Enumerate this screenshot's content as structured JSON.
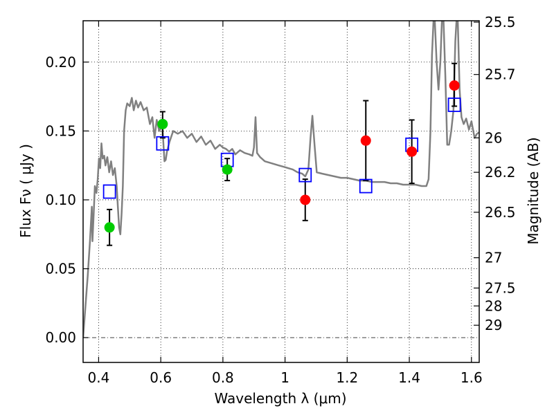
{
  "chart_data": {
    "type": "scatter",
    "xlabel": "Wavelength  λ (μm)",
    "ylabel": "Flux  Fν  ( μJy )",
    "ylabel_right": "Magnitude (AB)",
    "xlim": [
      0.35,
      1.625
    ],
    "ylim": [
      -0.018,
      0.23
    ],
    "x_ticks": [
      0.4,
      0.6,
      0.8,
      1.0,
      1.2,
      1.4,
      1.6
    ],
    "x_tick_labels": [
      "0.4",
      "0.6",
      "0.8",
      "1",
      "1.2",
      "1.4",
      "1.6"
    ],
    "y_ticks": [
      0.0,
      0.05,
      0.1,
      0.15,
      0.2
    ],
    "y_tick_labels": [
      "0.00",
      "0.05",
      "0.10",
      "0.15",
      "0.20"
    ],
    "right_ticks": [
      {
        "label": "25.5",
        "flux": 0.229
      },
      {
        "label": "25.7",
        "flux": 0.191
      },
      {
        "label": "26",
        "flux": 0.145
      },
      {
        "label": "26.2",
        "flux": 0.12
      },
      {
        "label": "26.5",
        "flux": 0.091
      },
      {
        "label": "27",
        "flux": 0.058
      },
      {
        "label": "27.5",
        "flux": 0.036
      },
      {
        "label": "28",
        "flux": 0.023
      },
      {
        "label": "29",
        "flux": 0.009
      }
    ],
    "grid": true,
    "zero_line": 0.0,
    "colors": {
      "template": "#808080",
      "green_points": "#00cc00",
      "red_points": "#ff0000",
      "model_squares": "#0000ff",
      "errorbars": "#000000"
    },
    "series": [
      {
        "kind": "line",
        "points": [
          [
            0.35,
            0.0
          ],
          [
            0.365,
            0.045
          ],
          [
            0.372,
            0.07
          ],
          [
            0.378,
            0.095
          ],
          [
            0.38,
            0.07
          ],
          [
            0.384,
            0.09
          ],
          [
            0.388,
            0.11
          ],
          [
            0.393,
            0.105
          ],
          [
            0.397,
            0.115
          ],
          [
            0.401,
            0.13
          ],
          [
            0.405,
            0.123
          ],
          [
            0.409,
            0.141
          ],
          [
            0.413,
            0.13
          ],
          [
            0.418,
            0.132
          ],
          [
            0.422,
            0.125
          ],
          [
            0.428,
            0.131
          ],
          [
            0.434,
            0.12
          ],
          [
            0.44,
            0.128
          ],
          [
            0.446,
            0.118
          ],
          [
            0.452,
            0.123
          ],
          [
            0.458,
            0.11
          ],
          [
            0.462,
            0.095
          ],
          [
            0.466,
            0.08
          ],
          [
            0.47,
            0.075
          ],
          [
            0.474,
            0.09
          ],
          [
            0.478,
            0.11
          ],
          [
            0.482,
            0.15
          ],
          [
            0.487,
            0.165
          ],
          [
            0.492,
            0.17
          ],
          [
            0.5,
            0.168
          ],
          [
            0.507,
            0.174
          ],
          [
            0.513,
            0.165
          ],
          [
            0.52,
            0.172
          ],
          [
            0.527,
            0.167
          ],
          [
            0.535,
            0.171
          ],
          [
            0.545,
            0.165
          ],
          [
            0.555,
            0.167
          ],
          [
            0.565,
            0.155
          ],
          [
            0.573,
            0.16
          ],
          [
            0.58,
            0.145
          ],
          [
            0.587,
            0.158
          ],
          [
            0.595,
            0.15
          ],
          [
            0.605,
            0.154
          ],
          [
            0.612,
            0.128
          ],
          [
            0.616,
            0.129
          ],
          [
            0.62,
            0.135
          ],
          [
            0.628,
            0.142
          ],
          [
            0.64,
            0.15
          ],
          [
            0.655,
            0.148
          ],
          [
            0.67,
            0.15
          ],
          [
            0.685,
            0.145
          ],
          [
            0.7,
            0.148
          ],
          [
            0.715,
            0.142
          ],
          [
            0.73,
            0.146
          ],
          [
            0.745,
            0.14
          ],
          [
            0.76,
            0.143
          ],
          [
            0.775,
            0.137
          ],
          [
            0.79,
            0.14
          ],
          [
            0.8,
            0.138
          ],
          [
            0.81,
            0.137
          ],
          [
            0.82,
            0.135
          ],
          [
            0.83,
            0.137
          ],
          [
            0.84,
            0.133
          ],
          [
            0.855,
            0.136
          ],
          [
            0.87,
            0.134
          ],
          [
            0.885,
            0.133
          ],
          [
            0.895,
            0.132
          ],
          [
            0.9,
            0.138
          ],
          [
            0.905,
            0.16
          ],
          [
            0.91,
            0.134
          ],
          [
            0.92,
            0.131
          ],
          [
            0.935,
            0.128
          ],
          [
            0.95,
            0.127
          ],
          [
            0.965,
            0.126
          ],
          [
            0.98,
            0.125
          ],
          [
            0.995,
            0.124
          ],
          [
            1.01,
            0.123
          ],
          [
            1.025,
            0.122
          ],
          [
            1.04,
            0.12
          ],
          [
            1.055,
            0.119
          ],
          [
            1.065,
            0.117
          ],
          [
            1.075,
            0.122
          ],
          [
            1.082,
            0.145
          ],
          [
            1.088,
            0.161
          ],
          [
            1.095,
            0.14
          ],
          [
            1.102,
            0.12
          ],
          [
            1.12,
            0.119
          ],
          [
            1.14,
            0.118
          ],
          [
            1.16,
            0.117
          ],
          [
            1.18,
            0.116
          ],
          [
            1.2,
            0.116
          ],
          [
            1.22,
            0.115
          ],
          [
            1.24,
            0.114
          ],
          [
            1.26,
            0.114
          ],
          [
            1.28,
            0.113
          ],
          [
            1.3,
            0.113
          ],
          [
            1.32,
            0.113
          ],
          [
            1.34,
            0.112
          ],
          [
            1.36,
            0.112
          ],
          [
            1.38,
            0.111
          ],
          [
            1.4,
            0.111
          ],
          [
            1.42,
            0.111
          ],
          [
            1.44,
            0.11
          ],
          [
            1.455,
            0.11
          ],
          [
            1.462,
            0.115
          ],
          [
            1.468,
            0.15
          ],
          [
            1.473,
            0.205
          ],
          [
            1.478,
            0.231
          ],
          [
            1.482,
            0.231
          ],
          [
            1.488,
            0.2
          ],
          [
            1.494,
            0.18
          ],
          [
            1.5,
            0.2
          ],
          [
            1.505,
            0.231
          ],
          [
            1.51,
            0.231
          ],
          [
            1.516,
            0.19
          ],
          [
            1.522,
            0.14
          ],
          [
            1.528,
            0.14
          ],
          [
            1.535,
            0.15
          ],
          [
            1.542,
            0.165
          ],
          [
            1.548,
            0.215
          ],
          [
            1.552,
            0.231
          ],
          [
            1.556,
            0.231
          ],
          [
            1.562,
            0.18
          ],
          [
            1.568,
            0.16
          ],
          [
            1.575,
            0.155
          ],
          [
            1.583,
            0.159
          ],
          [
            1.592,
            0.151
          ],
          [
            1.6,
            0.157
          ],
          [
            1.61,
            0.145
          ],
          [
            1.618,
            0.148
          ],
          [
            1.625,
            0.149
          ]
        ]
      },
      {
        "kind": "errorbar",
        "points": [
          {
            "x": 0.435,
            "y": 0.08,
            "yerr_low": 0.013,
            "yerr_high": 0.013
          },
          {
            "x": 0.606,
            "y": 0.155,
            "yerr_low": 0.01,
            "yerr_high": 0.009
          },
          {
            "x": 0.814,
            "y": 0.122,
            "yerr_low": 0.008,
            "yerr_high": 0.008
          },
          {
            "x": 1.065,
            "y": 0.1,
            "yerr_low": 0.015,
            "yerr_high": 0.015
          },
          {
            "x": 1.26,
            "y": 0.143,
            "yerr_low": 0.029,
            "yerr_high": 0.029
          },
          {
            "x": 1.408,
            "y": 0.135,
            "yerr_low": 0.023,
            "yerr_high": 0.023
          },
          {
            "x": 1.545,
            "y": 0.183,
            "yerr_low": 0.015,
            "yerr_high": 0.016
          }
        ]
      },
      {
        "kind": "circle",
        "color": "#00cc00",
        "points": [
          [
            0.435,
            0.08
          ],
          [
            0.606,
            0.155
          ],
          [
            0.814,
            0.122
          ]
        ]
      },
      {
        "kind": "circle",
        "color": "#ff0000",
        "points": [
          [
            1.065,
            0.1
          ],
          [
            1.26,
            0.143
          ],
          [
            1.408,
            0.135
          ],
          [
            1.545,
            0.183
          ]
        ]
      },
      {
        "kind": "square",
        "color": "#0000ff",
        "points": [
          [
            0.435,
            0.106
          ],
          [
            0.606,
            0.141
          ],
          [
            0.814,
            0.129
          ],
          [
            1.065,
            0.118
          ],
          [
            1.26,
            0.11
          ],
          [
            1.408,
            0.14
          ],
          [
            1.545,
            0.169
          ]
        ]
      }
    ]
  }
}
